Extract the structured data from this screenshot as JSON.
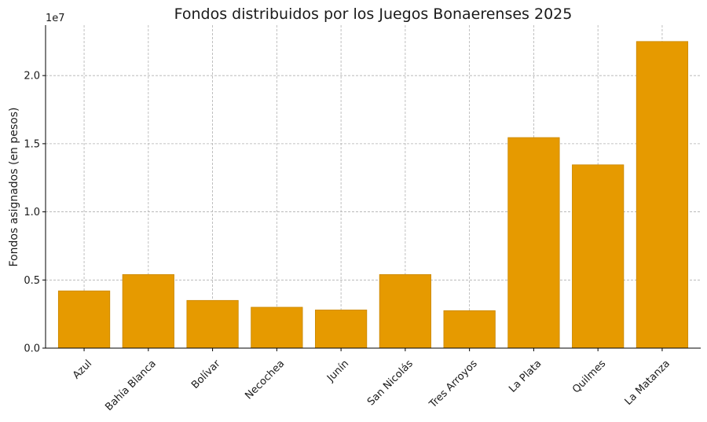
{
  "chart_data": {
    "type": "bar",
    "title": "Fondos distribuidos por los Juegos Bonaerenses 2025",
    "xlabel": "",
    "ylabel": "Fondos asignados (en pesos)",
    "y_multiplier_label": "1e7",
    "categories": [
      "Azul",
      "Bahía Blanca",
      "Bolívar",
      "Necochea",
      "Junín",
      "San Nicolás",
      "Tres Arroyos",
      "La Plata",
      "Quilmes",
      "La Matanza"
    ],
    "values": [
      4200000,
      5400000,
      3500000,
      3000000,
      2800000,
      5400000,
      2750000,
      15450000,
      13450000,
      22500000
    ],
    "ylim": [
      0,
      23700000
    ],
    "yticks": [
      0,
      5000000,
      10000000,
      15000000,
      20000000
    ],
    "ytick_labels": [
      "0.0",
      "0.5",
      "1.0",
      "1.5",
      "2.0"
    ],
    "grid": true,
    "colors": {
      "bar": "#E69A00",
      "bar_edge": "#C98700"
    }
  }
}
